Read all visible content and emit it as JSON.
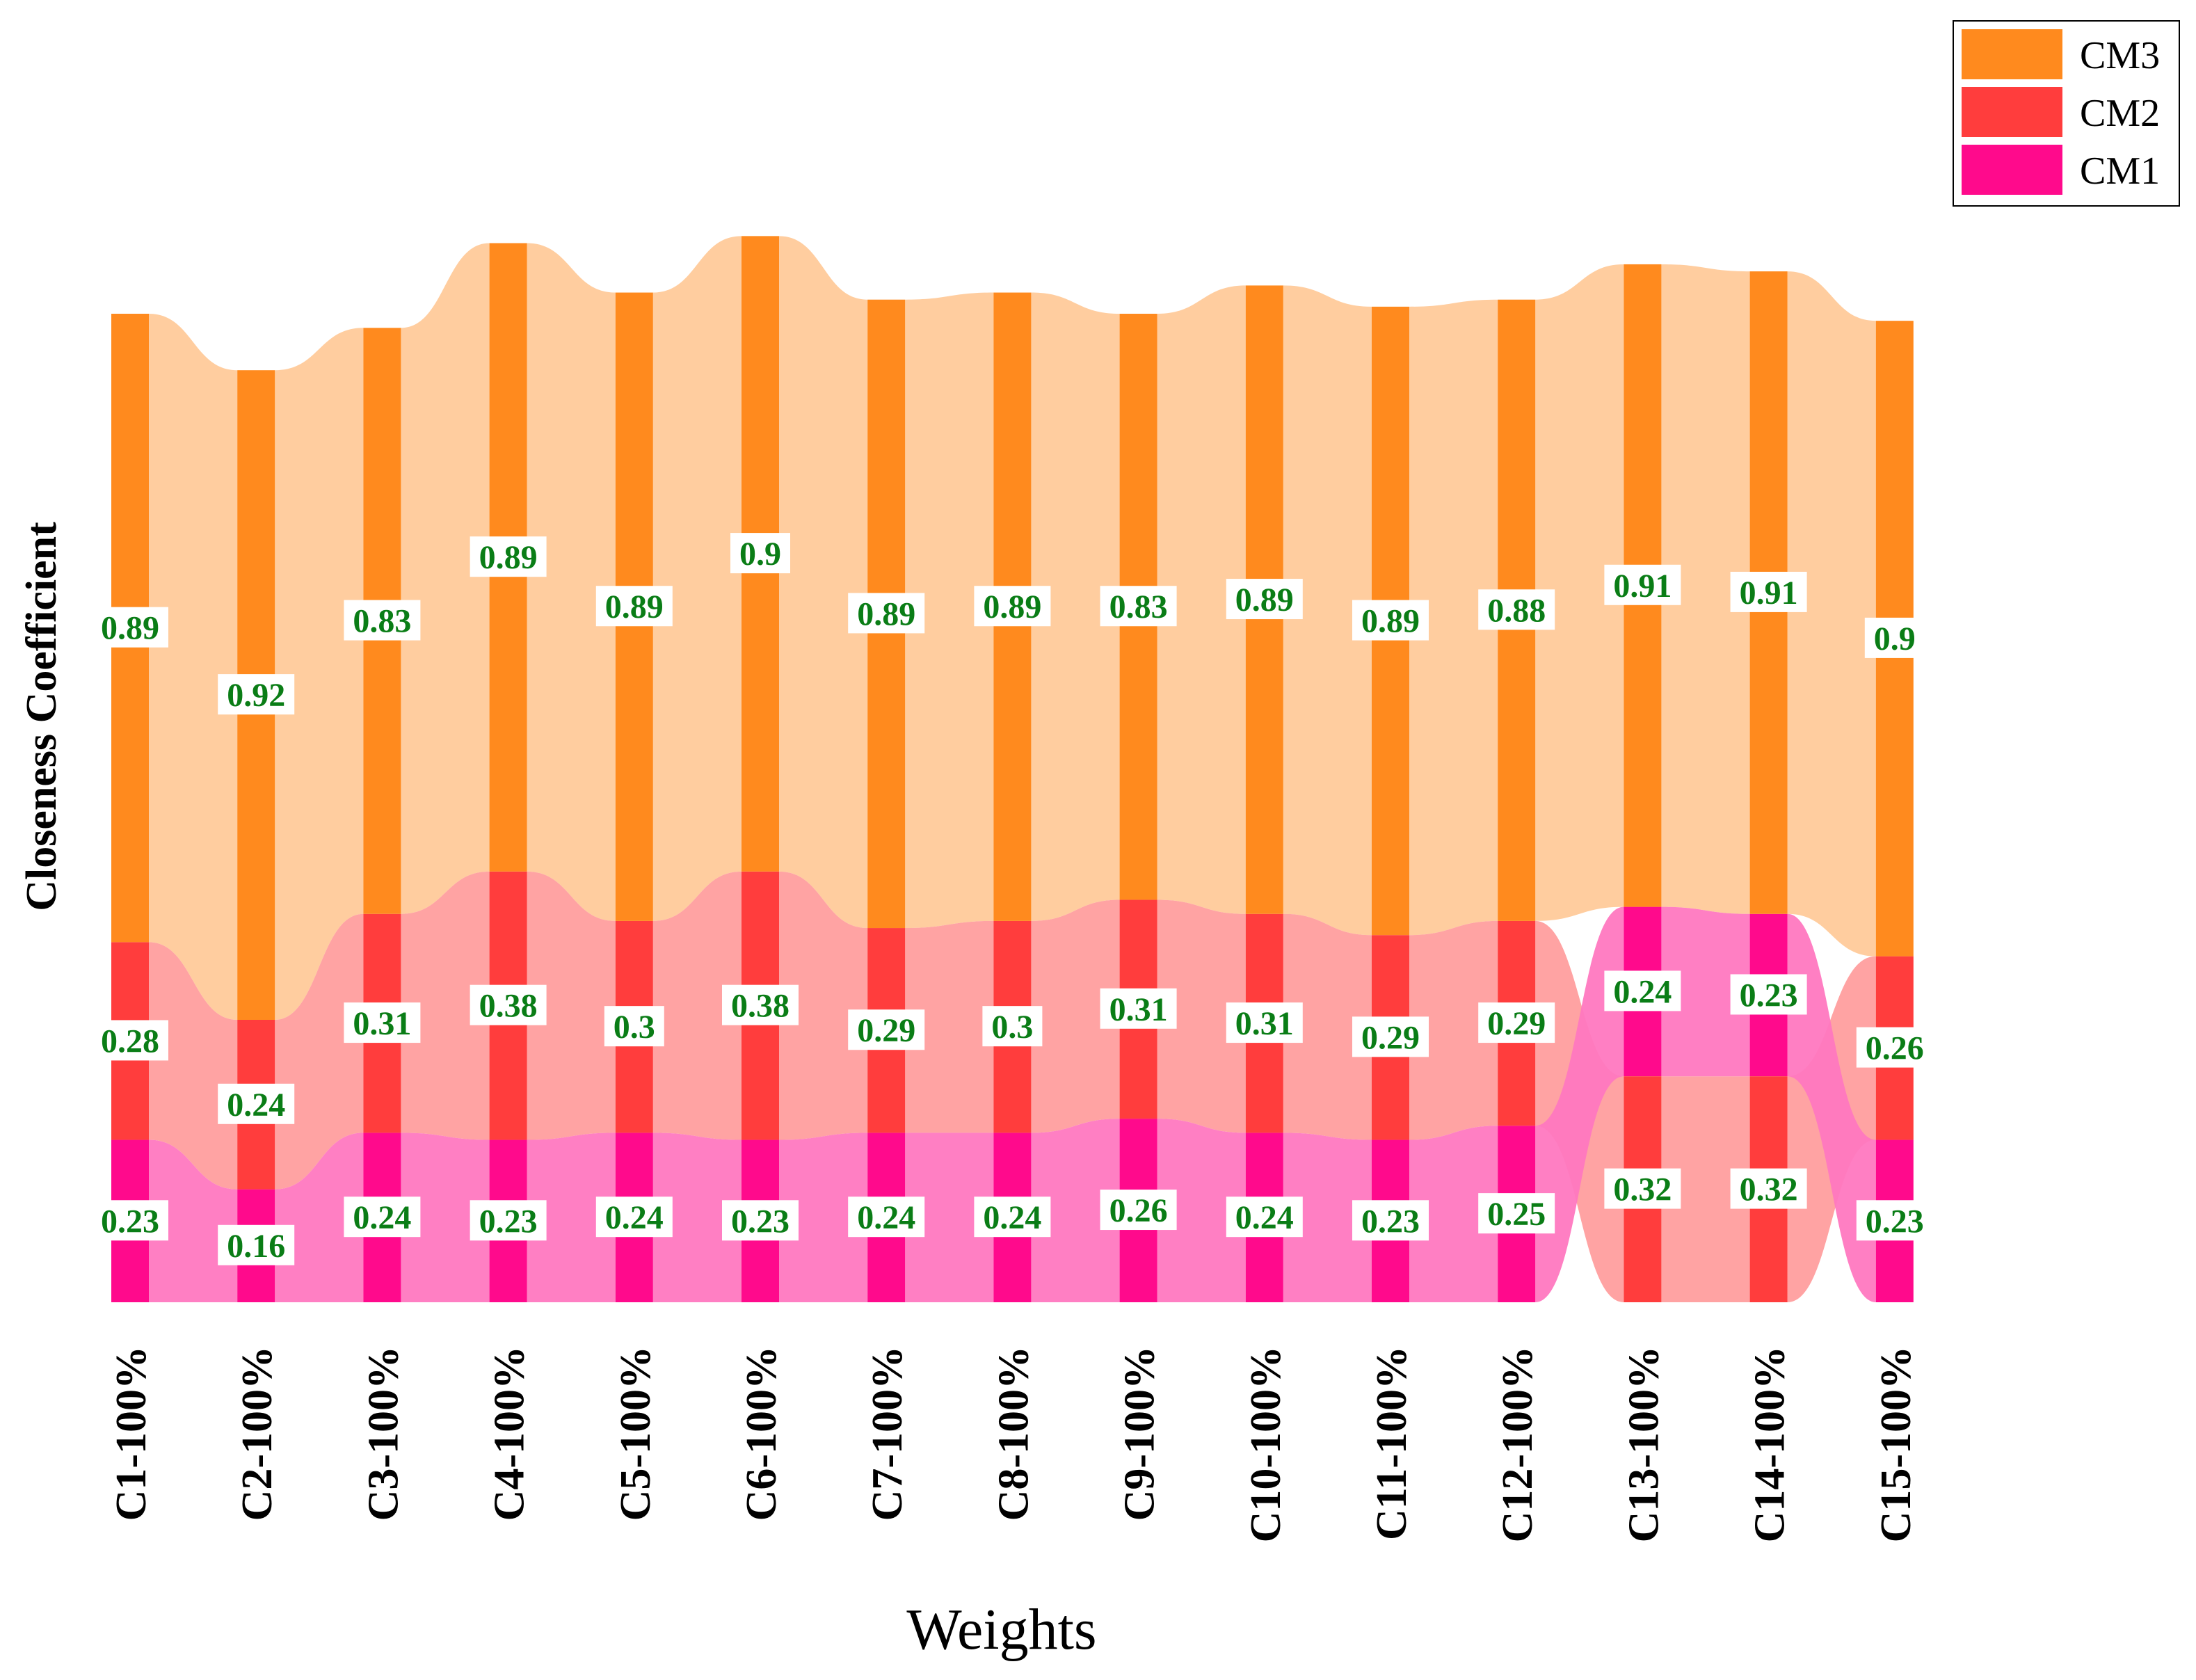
{
  "chart_data": {
    "type": "alluvial-stacked-bar",
    "xlabel": "Weights",
    "ylabel": "Closeness Coefficient",
    "categories": [
      "C1-100%",
      "C2-100%",
      "C3-100%",
      "C4-100%",
      "C5-100%",
      "C6-100%",
      "C7-100%",
      "C8-100%",
      "C9-100%",
      "C10-100%",
      "C11-100%",
      "C12-100%",
      "C13-100%",
      "C14-100%",
      "C15-100%"
    ],
    "series": [
      {
        "name": "CM1",
        "color": "#ff0a8c",
        "values": [
          0.23,
          0.16,
          0.24,
          0.23,
          0.24,
          0.23,
          0.24,
          0.24,
          0.26,
          0.24,
          0.23,
          0.25,
          0.24,
          0.23,
          0.23
        ]
      },
      {
        "name": "CM2",
        "color": "#ff3d3d",
        "values": [
          0.28,
          0.24,
          0.31,
          0.38,
          0.3,
          0.38,
          0.29,
          0.3,
          0.31,
          0.31,
          0.29,
          0.29,
          0.32,
          0.32,
          0.26
        ]
      },
      {
        "name": "CM3",
        "color": "#ff8a1e",
        "values": [
          0.89,
          0.92,
          0.83,
          0.89,
          0.89,
          0.9,
          0.89,
          0.89,
          0.83,
          0.89,
          0.89,
          0.88,
          0.91,
          0.91,
          0.9
        ]
      }
    ],
    "stack_order_bottom_to_top": [
      [
        "CM1",
        "CM2",
        "CM3"
      ],
      [
        "CM1",
        "CM2",
        "CM3"
      ],
      [
        "CM1",
        "CM2",
        "CM3"
      ],
      [
        "CM1",
        "CM2",
        "CM3"
      ],
      [
        "CM1",
        "CM2",
        "CM3"
      ],
      [
        "CM1",
        "CM2",
        "CM3"
      ],
      [
        "CM1",
        "CM2",
        "CM3"
      ],
      [
        "CM1",
        "CM2",
        "CM3"
      ],
      [
        "CM1",
        "CM2",
        "CM3"
      ],
      [
        "CM1",
        "CM2",
        "CM3"
      ],
      [
        "CM1",
        "CM2",
        "CM3"
      ],
      [
        "CM1",
        "CM2",
        "CM3"
      ],
      [
        "CM2",
        "CM1",
        "CM3"
      ],
      [
        "CM2",
        "CM1",
        "CM3"
      ],
      [
        "CM1",
        "CM2",
        "CM3"
      ]
    ],
    "legend": {
      "position": "top-right",
      "entries": [
        "CM3",
        "CM2",
        "CM1"
      ]
    },
    "grid": false
  }
}
